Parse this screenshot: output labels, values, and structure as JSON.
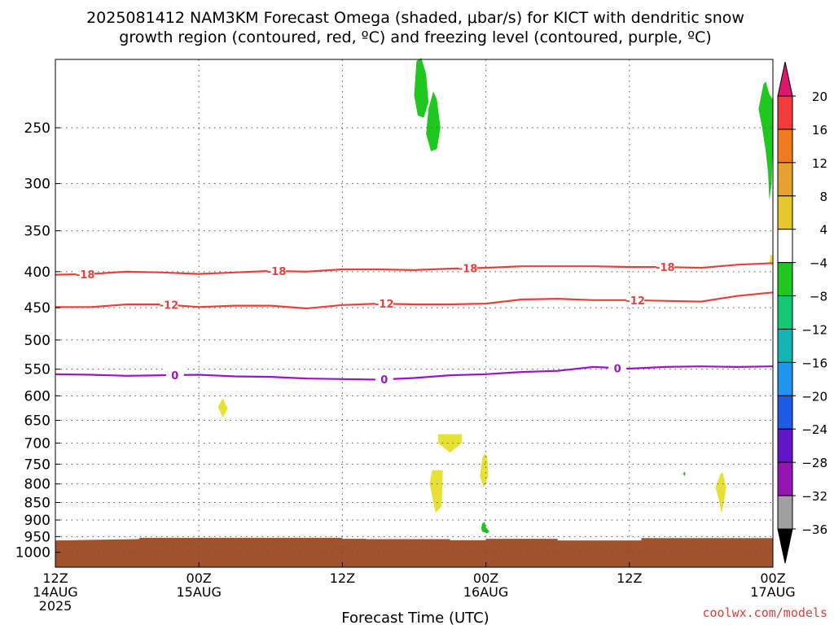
{
  "title": {
    "line1": "2025081412 NAM3KM Forecast Omega (shaded, μbar/s) for KICT with dendritic snow",
    "line2": "growth region (contoured, red, ºC) and freezing level (contoured, purple, ºC)"
  },
  "credit": "coolwx.com/models",
  "chart_data": {
    "type": "heatmap",
    "xlabel": "Forecast Time (UTC)",
    "x_range_hours": [
      0,
      60
    ],
    "x_ticks": [
      {
        "hour": 0,
        "lines": [
          "12Z",
          "14AUG",
          "2025"
        ]
      },
      {
        "hour": 12,
        "lines": [
          "00Z",
          "15AUG"
        ]
      },
      {
        "hour": 24,
        "lines": [
          "12Z"
        ]
      },
      {
        "hour": 36,
        "lines": [
          "00Z",
          "16AUG"
        ]
      },
      {
        "hour": 48,
        "lines": [
          "12Z"
        ]
      },
      {
        "hour": 60,
        "lines": [
          "00Z",
          "17AUG"
        ]
      }
    ],
    "y_axis": {
      "scale": "log",
      "range_hPa": [
        1050,
        200
      ],
      "reversed": true
    },
    "y_ticks": [
      250,
      300,
      350,
      400,
      450,
      500,
      550,
      600,
      650,
      700,
      750,
      800,
      850,
      900,
      950,
      1000
    ],
    "grid": true,
    "colorbar": {
      "labels": [
        "20",
        "16",
        "12",
        "8",
        "4",
        "−4",
        "−8",
        "−12",
        "−16",
        "−20",
        "−24",
        "−28",
        "−32",
        "−36"
      ],
      "top_tri": "#e0156e",
      "bottom_tri": "#000000",
      "colors": [
        "#f23c3c",
        "#f07a1e",
        "#e6a02d",
        "#e6c82d",
        "#e6e132",
        "#ffffff",
        "#1ec81e",
        "#14c878",
        "#14b4b4",
        "#1e96f0",
        "#1e5ae6",
        "#6414c8",
        "#9614b4",
        "#a0a0a0",
        "#000000"
      ],
      "note": "colors ordered from top (above 20) to bottom (below -36)"
    },
    "red_contours": [
      {
        "label": "-18",
        "label_positions_hours": [
          2.5,
          18.5,
          34.5,
          51
        ],
        "points": [
          [
            0,
            404
          ],
          [
            3,
            403
          ],
          [
            6,
            400
          ],
          [
            9,
            401
          ],
          [
            12,
            403
          ],
          [
            15,
            401
          ],
          [
            18,
            399
          ],
          [
            21,
            400
          ],
          [
            24,
            397
          ],
          [
            27,
            397
          ],
          [
            30,
            398
          ],
          [
            33,
            396
          ],
          [
            36,
            395
          ],
          [
            39,
            393
          ],
          [
            42,
            393
          ],
          [
            45,
            393
          ],
          [
            48,
            394
          ],
          [
            51,
            394
          ],
          [
            54,
            395
          ],
          [
            57,
            391
          ],
          [
            60,
            389
          ]
        ]
      },
      {
        "label": "-12",
        "label_positions_hours": [
          9.5,
          27.5,
          48.5
        ],
        "points": [
          [
            0,
            449
          ],
          [
            3,
            449
          ],
          [
            6,
            445
          ],
          [
            9,
            445
          ],
          [
            12,
            449
          ],
          [
            15,
            447
          ],
          [
            18,
            447
          ],
          [
            21,
            451
          ],
          [
            24,
            446
          ],
          [
            27,
            444
          ],
          [
            30,
            445
          ],
          [
            33,
            445
          ],
          [
            36,
            444
          ],
          [
            39,
            438
          ],
          [
            42,
            437
          ],
          [
            45,
            439
          ],
          [
            48,
            439
          ],
          [
            51,
            440
          ],
          [
            54,
            441
          ],
          [
            57,
            433
          ],
          [
            60,
            428
          ]
        ]
      }
    ],
    "purple_contours": [
      {
        "label": "0",
        "label_positions_hours": [
          10,
          27.5,
          47
        ],
        "points": [
          [
            0,
            559
          ],
          [
            3,
            560
          ],
          [
            6,
            562
          ],
          [
            9,
            561
          ],
          [
            12,
            560
          ],
          [
            15,
            563
          ],
          [
            18,
            564
          ],
          [
            21,
            567
          ],
          [
            24,
            568
          ],
          [
            27,
            569
          ],
          [
            30,
            566
          ],
          [
            33,
            561
          ],
          [
            36,
            559
          ],
          [
            39,
            555
          ],
          [
            42,
            553
          ],
          [
            45,
            546
          ],
          [
            48,
            549
          ],
          [
            51,
            546
          ],
          [
            54,
            545
          ],
          [
            57,
            546
          ],
          [
            60,
            545
          ]
        ]
      }
    ],
    "omega_blobs": [
      {
        "color": "#1ec81e",
        "points": [
          [
            30.2,
            201
          ],
          [
            30.0,
            225
          ],
          [
            30.3,
            240
          ],
          [
            30.8,
            242
          ],
          [
            31.2,
            230
          ],
          [
            31.0,
            210
          ],
          [
            30.6,
            199
          ]
        ]
      },
      {
        "color": "#1ec81e",
        "points": [
          [
            31.2,
            235
          ],
          [
            31.0,
            255
          ],
          [
            31.4,
            270
          ],
          [
            31.9,
            268
          ],
          [
            32.2,
            250
          ],
          [
            31.9,
            228
          ],
          [
            31.6,
            222
          ]
        ]
      },
      {
        "color": "#1ec81e",
        "points": [
          [
            59.2,
            217
          ],
          [
            58.8,
            235
          ],
          [
            59.1,
            250
          ],
          [
            59.4,
            270
          ],
          [
            59.6,
            290
          ],
          [
            59.7,
            317
          ],
          [
            59.9,
            300
          ],
          [
            60.0,
            260
          ],
          [
            60.0,
            228
          ],
          [
            59.7,
            224
          ],
          [
            59.4,
            215
          ]
        ]
      },
      {
        "color": "#e6e132",
        "points": [
          [
            59.8,
            378
          ],
          [
            59.7,
            390
          ],
          [
            59.9,
            392
          ],
          [
            60.0,
            380
          ]
        ]
      },
      {
        "color": "#e6e132",
        "points": [
          [
            14.0,
            605
          ],
          [
            13.6,
            622
          ],
          [
            14.0,
            645
          ],
          [
            14.4,
            625
          ]
        ]
      },
      {
        "color": "#e6e132",
        "points": [
          [
            32.0,
            680
          ],
          [
            32.0,
            700
          ],
          [
            33.0,
            722
          ],
          [
            34.0,
            700
          ],
          [
            34.0,
            680
          ]
        ]
      },
      {
        "color": "#e6e132",
        "points": [
          [
            31.5,
            765
          ],
          [
            31.3,
            800
          ],
          [
            31.6,
            848
          ],
          [
            31.8,
            880
          ],
          [
            32.3,
            860
          ],
          [
            32.4,
            765
          ]
        ]
      },
      {
        "color": "#e6e132",
        "points": [
          [
            35.7,
            735
          ],
          [
            35.5,
            780
          ],
          [
            35.8,
            810
          ],
          [
            36.2,
            780
          ],
          [
            36.1,
            730
          ],
          [
            35.9,
            725
          ]
        ]
      },
      {
        "color": "#e6e132",
        "points": [
          [
            55.6,
            775
          ],
          [
            55.2,
            810
          ],
          [
            55.5,
            845
          ],
          [
            55.7,
            880
          ],
          [
            55.9,
            850
          ],
          [
            56.1,
            810
          ],
          [
            55.8,
            770
          ]
        ]
      },
      {
        "color": "#1ec81e",
        "points": [
          [
            35.7,
            910
          ],
          [
            35.6,
            925
          ],
          [
            35.7,
            935
          ],
          [
            36.1,
            940
          ],
          [
            36.3,
            935
          ],
          [
            36.0,
            922
          ],
          [
            35.9,
            905
          ]
        ]
      },
      {
        "color": "#1ec81e",
        "points": [
          [
            52.6,
            768
          ],
          [
            52.5,
            774
          ],
          [
            52.6,
            780
          ],
          [
            52.7,
            774
          ]
        ]
      }
    ],
    "terrain": {
      "color": "#a0522d",
      "points": [
        [
          0,
          962
        ],
        [
          0,
          1050
        ],
        [
          60,
          1050
        ],
        [
          60,
          955
        ],
        [
          49,
          955
        ],
        [
          49,
          962
        ],
        [
          42,
          962
        ],
        [
          42,
          957
        ],
        [
          36,
          957
        ],
        [
          36,
          961
        ],
        [
          33,
          961
        ],
        [
          33,
          958
        ],
        [
          26,
          958
        ],
        [
          26,
          957
        ],
        [
          24,
          957
        ],
        [
          24,
          954
        ],
        [
          7,
          954
        ],
        [
          7,
          958
        ]
      ]
    }
  }
}
